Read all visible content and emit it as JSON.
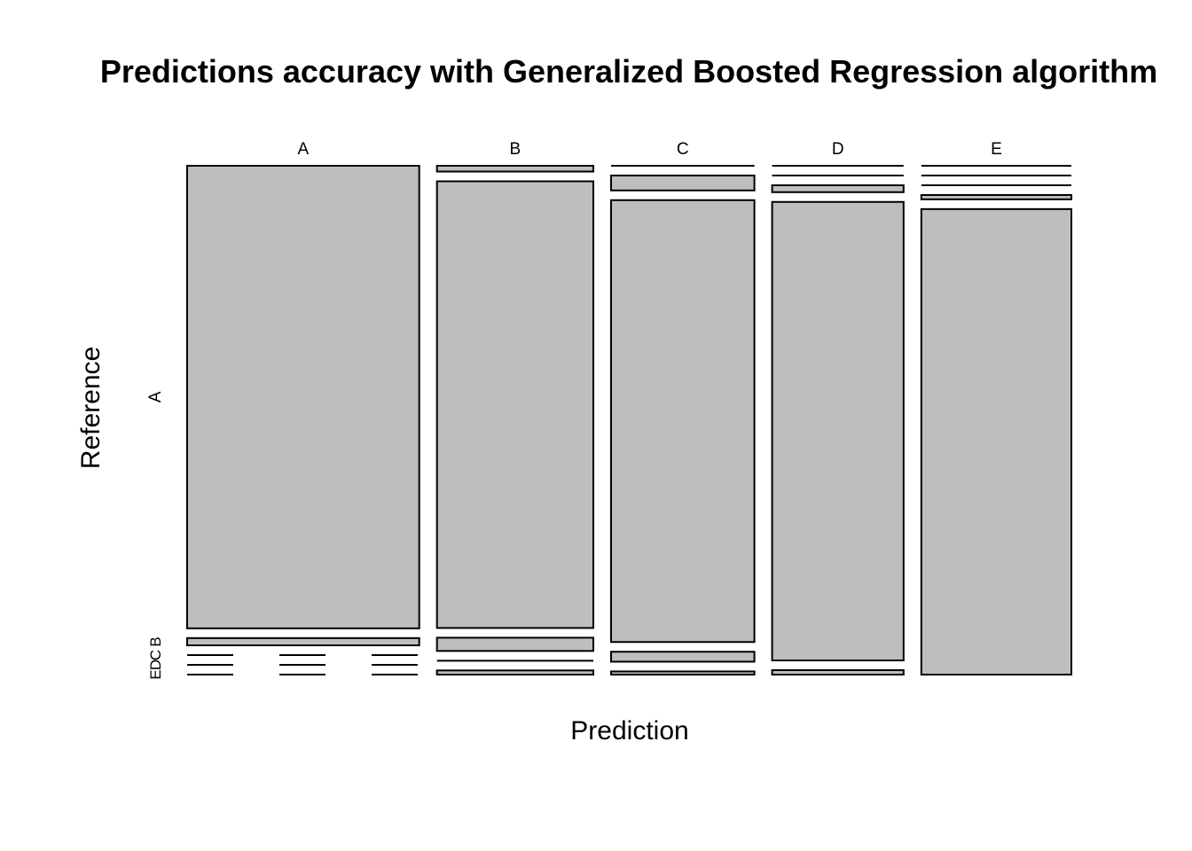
{
  "chart_data": {
    "type": "mosaic",
    "title": "Predictions accuracy with Generalized Boosted Regression algorithm",
    "xlabel": "Prediction",
    "ylabel": "Reference",
    "prediction_levels": [
      "A",
      "B",
      "C",
      "D",
      "E"
    ],
    "reference_levels": [
      "A",
      "B",
      "C",
      "D",
      "E"
    ],
    "reference_tick_labels": [
      "A",
      "B",
      "C",
      "D",
      "E"
    ],
    "fill_color": "#bebebe",
    "matrix": [
      {
        "prediction": "A",
        "counts": {
          "A": 1660,
          "B": 26,
          "C": 0,
          "D": 0,
          "E": 0
        }
      },
      {
        "prediction": "B",
        "counts": {
          "A": 14,
          "B": 1080,
          "C": 32,
          "D": 0,
          "E": 10
        }
      },
      {
        "prediction": "C",
        "counts": {
          "A": 0,
          "B": 33,
          "C": 979,
          "D": 22,
          "E": 7
        }
      },
      {
        "prediction": "D",
        "counts": {
          "A": 0,
          "B": 0,
          "C": 14,
          "D": 932,
          "E": 9
        }
      },
      {
        "prediction": "E",
        "counts": {
          "A": 0,
          "B": 0,
          "C": 0,
          "D": 10,
          "E": 1080
        }
      }
    ]
  }
}
